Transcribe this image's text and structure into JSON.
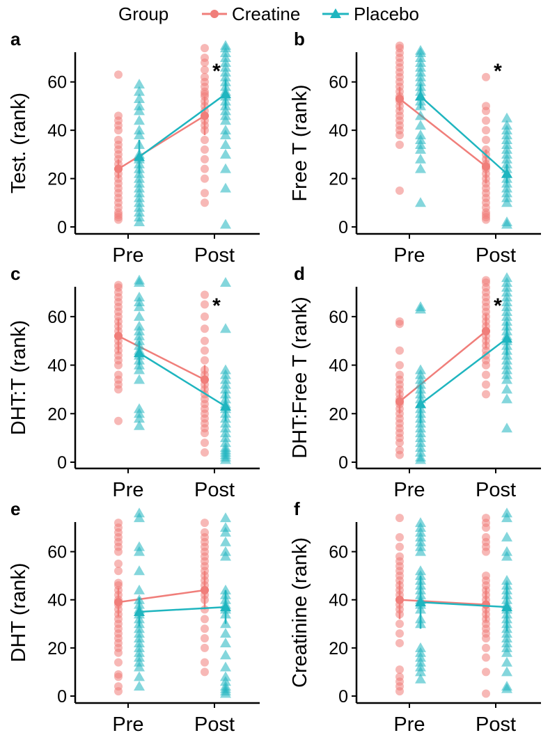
{
  "legend": {
    "title": "Group",
    "items": [
      {
        "label": "Creatine",
        "color": "#F07E7A",
        "shape": "circle"
      },
      {
        "label": "Placebo",
        "color": "#1FB5BF",
        "shape": "triangle"
      }
    ]
  },
  "chart_data": [
    {
      "type": "scatter",
      "panel_label": "a",
      "ylabel": "Test. (rank)",
      "categories": [
        "Pre",
        "Post"
      ],
      "ylim": [
        0,
        75
      ],
      "yticks": [
        0,
        20,
        40,
        60
      ],
      "annotation": "*",
      "series": [
        {
          "name": "Creatine",
          "means": [
            24,
            46
          ],
          "errors": [
            4,
            8
          ],
          "points": [
            [
              3,
              4,
              5,
              6,
              8,
              10,
              12,
              14,
              16,
              18,
              20,
              22,
              24,
              26,
              28,
              30,
              32,
              34,
              36,
              40,
              42,
              44,
              46,
              63
            ],
            [
              10,
              14,
              20,
              24,
              28,
              32,
              36,
              40,
              42,
              44,
              46,
              48,
              50,
              52,
              54,
              55,
              56,
              58,
              60,
              62,
              65,
              68,
              70,
              74
            ]
          ]
        },
        {
          "name": "Placebo",
          "means": [
            29,
            55
          ],
          "errors": [
            7,
            6
          ],
          "points": [
            [
              2,
              4,
              6,
              8,
              10,
              12,
              14,
              16,
              18,
              20,
              22,
              24,
              26,
              28,
              30,
              34,
              38,
              40,
              44,
              48,
              50,
              53,
              56,
              59
            ],
            [
              1,
              16,
              24,
              30,
              34,
              38,
              40,
              44,
              46,
              48,
              50,
              52,
              54,
              56,
              58,
              60,
              62,
              64,
              66,
              68,
              70,
              72,
              74,
              75
            ]
          ]
        }
      ]
    },
    {
      "type": "scatter",
      "panel_label": "b",
      "ylabel": "Free T (rank)",
      "categories": [
        "Pre",
        "Post"
      ],
      "ylim": [
        0,
        75
      ],
      "yticks": [
        0,
        20,
        40,
        60
      ],
      "annotation": "*",
      "series": [
        {
          "name": "Creatine",
          "means": [
            53,
            25
          ],
          "errors": [
            5,
            7
          ],
          "points": [
            [
              15,
              34,
              38,
              40,
              42,
              44,
              46,
              48,
              50,
              52,
              54,
              56,
              58,
              60,
              62,
              64,
              66,
              68,
              70,
              72,
              74,
              75
            ],
            [
              3,
              4,
              5,
              6,
              8,
              10,
              12,
              14,
              16,
              18,
              20,
              22,
              24,
              26,
              28,
              30,
              32,
              36,
              40,
              44,
              48,
              50,
              62
            ]
          ]
        },
        {
          "name": "Placebo",
          "means": [
            54,
            22
          ],
          "errors": [
            5,
            4
          ],
          "points": [
            [
              10,
              24,
              28,
              32,
              34,
              36,
              38,
              42,
              46,
              50,
              52,
              54,
              56,
              58,
              60,
              62,
              64,
              66,
              68,
              70,
              72,
              73
            ],
            [
              1,
              2,
              10,
              12,
              14,
              16,
              18,
              20,
              22,
              24,
              26,
              28,
              30,
              32,
              34,
              36,
              38,
              40,
              42,
              45
            ]
          ]
        }
      ]
    },
    {
      "type": "scatter",
      "panel_label": "c",
      "ylabel": "DHT:T (rank)",
      "categories": [
        "Pre",
        "Post"
      ],
      "ylim": [
        0,
        75
      ],
      "yticks": [
        0,
        20,
        40,
        60
      ],
      "annotation": "*",
      "series": [
        {
          "name": "Creatine",
          "means": [
            52,
            34
          ],
          "errors": [
            7,
            6
          ],
          "points": [
            [
              17,
              30,
              32,
              34,
              36,
              40,
              42,
              44,
              46,
              48,
              50,
              52,
              54,
              56,
              58,
              60,
              62,
              64,
              66,
              68,
              70,
              72,
              73
            ],
            [
              4,
              8,
              12,
              14,
              16,
              18,
              20,
              22,
              24,
              26,
              28,
              30,
              32,
              34,
              36,
              38,
              42,
              46,
              50,
              55,
              60,
              65,
              69
            ]
          ]
        },
        {
          "name": "Placebo",
          "means": [
            45,
            23
          ],
          "errors": [
            5,
            6
          ],
          "points": [
            [
              15,
              18,
              20,
              22,
              34,
              38,
              40,
              42,
              44,
              46,
              48,
              50,
              52,
              54,
              56,
              60,
              64,
              66,
              68,
              74,
              75
            ],
            [
              1,
              2,
              3,
              4,
              5,
              6,
              8,
              10,
              12,
              14,
              16,
              18,
              20,
              22,
              24,
              26,
              28,
              30,
              32,
              34,
              36,
              38,
              55,
              74
            ]
          ]
        }
      ]
    },
    {
      "type": "scatter",
      "panel_label": "d",
      "ylabel": "DHT:Free T (rank)",
      "categories": [
        "Pre",
        "Post"
      ],
      "ylim": [
        0,
        75
      ],
      "yticks": [
        0,
        20,
        40,
        60
      ],
      "annotation": "*",
      "series": [
        {
          "name": "Creatine",
          "means": [
            25,
            54
          ],
          "errors": [
            5,
            7
          ],
          "points": [
            [
              3,
              5,
              8,
              10,
              12,
              14,
              16,
              18,
              20,
              22,
              24,
              26,
              28,
              30,
              32,
              34,
              36,
              40,
              46,
              57,
              58
            ],
            [
              28,
              32,
              36,
              40,
              42,
              44,
              46,
              48,
              50,
              52,
              54,
              56,
              58,
              60,
              62,
              64,
              66,
              68,
              70,
              72,
              74,
              75
            ]
          ]
        },
        {
          "name": "Placebo",
          "means": [
            24,
            51
          ],
          "errors": [
            8,
            7
          ],
          "points": [
            [
              1,
              2,
              4,
              6,
              8,
              10,
              12,
              14,
              16,
              18,
              20,
              22,
              24,
              26,
              28,
              30,
              32,
              34,
              36,
              38,
              63,
              64
            ],
            [
              14,
              26,
              30,
              34,
              36,
              38,
              40,
              42,
              44,
              46,
              48,
              50,
              52,
              54,
              56,
              58,
              60,
              62,
              64,
              66,
              68,
              70,
              72,
              74,
              76
            ]
          ]
        }
      ]
    },
    {
      "type": "scatter",
      "panel_label": "e",
      "ylabel": "DHT (rank)",
      "categories": [
        "Pre",
        "Post"
      ],
      "ylim": [
        0,
        75
      ],
      "yticks": [
        0,
        20,
        40,
        60
      ],
      "annotation": "",
      "series": [
        {
          "name": "Creatine",
          "means": [
            39,
            44
          ],
          "errors": [
            6,
            8
          ],
          "points": [
            [
              2,
              4,
              8,
              9,
              14,
              18,
              20,
              22,
              24,
              26,
              28,
              30,
              32,
              34,
              36,
              38,
              40,
              42,
              44,
              46,
              47,
              52,
              55,
              60,
              62,
              64,
              66,
              68,
              70,
              72
            ],
            [
              10,
              14,
              20,
              24,
              28,
              32,
              36,
              40,
              42,
              44,
              46,
              48,
              50,
              52,
              54,
              56,
              58,
              60,
              62,
              64,
              66,
              68,
              72
            ]
          ]
        },
        {
          "name": "Placebo",
          "means": [
            35,
            37
          ],
          "errors": [
            6,
            7
          ],
          "points": [
            [
              4,
              8,
              12,
              14,
              16,
              18,
              20,
              22,
              24,
              26,
              28,
              30,
              32,
              34,
              36,
              38,
              40,
              44,
              52,
              60,
              62,
              74,
              76
            ],
            [
              1,
              2,
              3,
              4,
              6,
              8,
              12,
              17,
              22,
              26,
              30,
              34,
              36,
              38,
              40,
              42,
              44,
              58,
              60,
              64,
              68,
              70,
              74
            ]
          ]
        }
      ]
    },
    {
      "type": "scatter",
      "panel_label": "f",
      "ylabel": "Creatinine (rank)",
      "categories": [
        "Pre",
        "Post"
      ],
      "ylim": [
        0,
        75
      ],
      "yticks": [
        0,
        20,
        40,
        60
      ],
      "annotation": "",
      "series": [
        {
          "name": "Creatine",
          "means": [
            40,
            38
          ],
          "errors": [
            8,
            7
          ],
          "points": [
            [
              2,
              4,
              6,
              8,
              11,
              22,
              26,
              30,
              34,
              36,
              38,
              40,
              42,
              44,
              46,
              48,
              50,
              52,
              54,
              56,
              58,
              62,
              66,
              74
            ],
            [
              1,
              10,
              16,
              20,
              24,
              26,
              28,
              30,
              32,
              34,
              36,
              38,
              40,
              42,
              44,
              46,
              48,
              50,
              60,
              62,
              64,
              66,
              70,
              72,
              74
            ]
          ]
        },
        {
          "name": "Placebo",
          "means": [
            39,
            37
          ],
          "errors": [
            11,
            10
          ],
          "points": [
            [
              7,
              10,
              12,
              14,
              16,
              18,
              20,
              30,
              32,
              36,
              38,
              40,
              42,
              44,
              46,
              48,
              50,
              52,
              60,
              62,
              64,
              66,
              68,
              70,
              72
            ],
            [
              3,
              4,
              10,
              14,
              18,
              20,
              22,
              24,
              26,
              28,
              30,
              32,
              34,
              36,
              38,
              40,
              42,
              44,
              46,
              48,
              58,
              60,
              66,
              74,
              76
            ]
          ]
        }
      ]
    }
  ]
}
